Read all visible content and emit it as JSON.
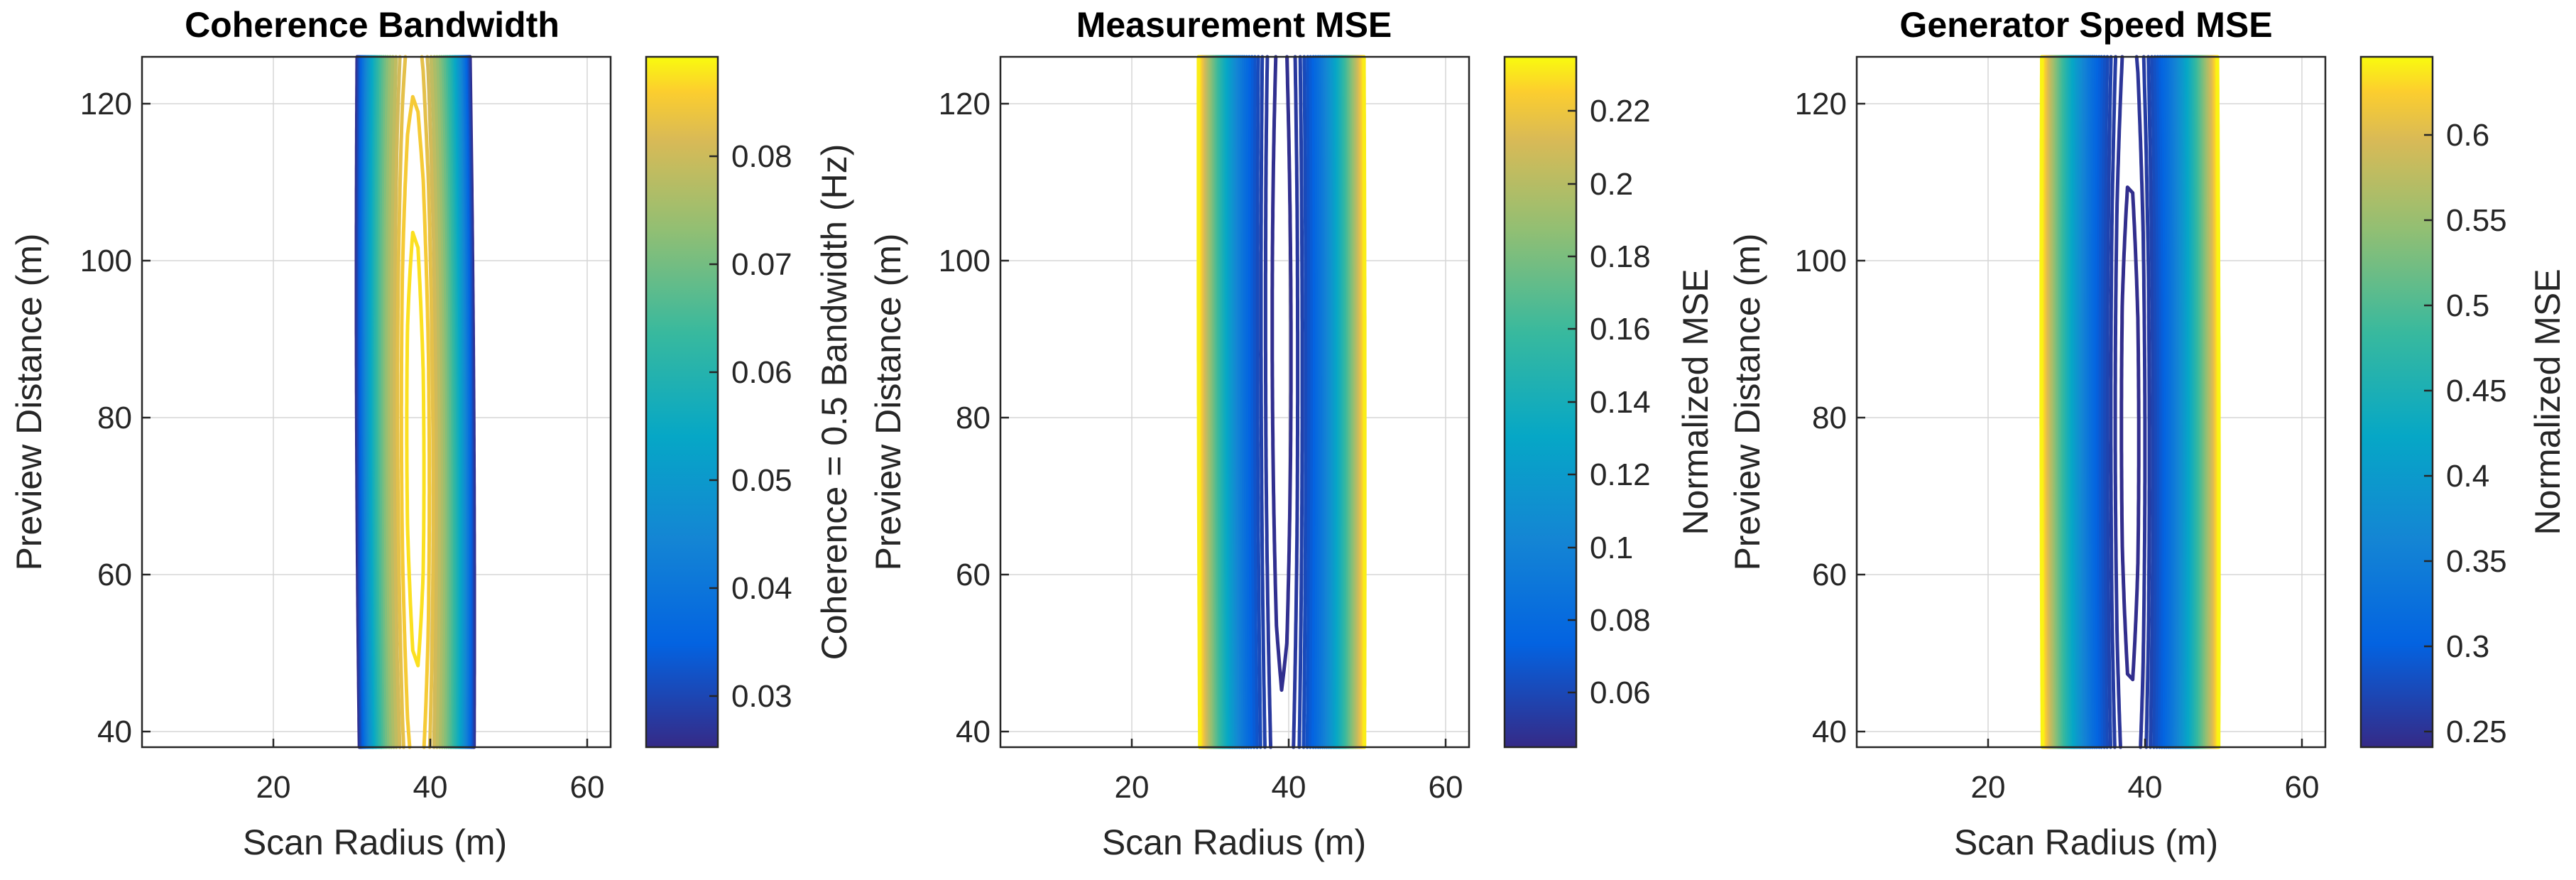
{
  "chart_data": [
    {
      "type": "contour",
      "title": "Coherence Bandwidth",
      "xlabel": "Scan Radius (m)",
      "ylabel": "Preview Distance (m)",
      "xlim": [
        3,
        63
      ],
      "ylim": [
        38,
        126
      ],
      "xticks": [
        "20",
        "40",
        "60"
      ],
      "yticks": [
        "40",
        "60",
        "80",
        "100",
        "120"
      ],
      "colorbar": {
        "label": "Coherence = 0.5 Bandwidth (Hz)",
        "range": [
          0.025,
          0.089
        ],
        "ticks": [
          "0.03",
          "0.04",
          "0.05",
          "0.06",
          "0.07",
          "0.08"
        ]
      },
      "field": {
        "kind": "max",
        "x0": 38,
        "y0": 76,
        "max": 0.0885,
        "min": 0.025,
        "a": 0.00112,
        "b": 1.8e-06,
        "c": 1.04e-05
      },
      "levels": {
        "start": 0.0255,
        "step": 0.0022,
        "count": 29
      }
    },
    {
      "type": "contour",
      "title": "Measurement MSE",
      "xlabel": "Scan Radius (m)",
      "ylabel": "Preview Distance (m)",
      "xlim": [
        3,
        63
      ],
      "ylim": [
        38,
        126
      ],
      "xticks": [
        "20",
        "40",
        "60"
      ],
      "yticks": [
        "40",
        "60",
        "80",
        "100",
        "120"
      ],
      "colorbar": {
        "label": "Normalized MSE",
        "range": [
          0.045,
          0.235
        ],
        "ticks": [
          "0.06",
          "0.08",
          "0.1",
          "0.12",
          "0.14",
          "0.16",
          "0.18",
          "0.2",
          "0.22"
        ]
      },
      "field": {
        "kind": "min",
        "x0": 39,
        "y0": 90,
        "max": 0.235,
        "min": 0.045,
        "a": 0.00165,
        "b": 1.25e-06,
        "c": 4.25e-06
      },
      "levels": {
        "start": 0.0475,
        "step": 0.0045,
        "count": 42
      }
    },
    {
      "type": "contour",
      "title": "Generator Speed MSE",
      "xlabel": "Scan Radius (m)",
      "ylabel": "Preview Distance (m)",
      "xlim": [
        3,
        63
      ],
      "ylim": [
        38,
        126
      ],
      "xticks": [
        "20",
        "40",
        "60"
      ],
      "yticks": [
        "40",
        "60",
        "80",
        "100",
        "120"
      ],
      "colorbar": {
        "label": "Normalized MSE",
        "range": [
          0.237,
          0.642
        ],
        "ticks": [
          "0.25",
          "0.3",
          "0.35",
          "0.4",
          "0.45",
          "0.5",
          "0.55",
          "0.6"
        ]
      },
      "field": {
        "kind": "min",
        "x0": 38,
        "y0": 78,
        "max": 0.642,
        "min": 0.237,
        "a": 0.0031,
        "b": 3.8e-06,
        "c": 8.2e-06
      },
      "levels": {
        "start": 0.241,
        "step": 0.0075,
        "count": 54
      }
    }
  ]
}
